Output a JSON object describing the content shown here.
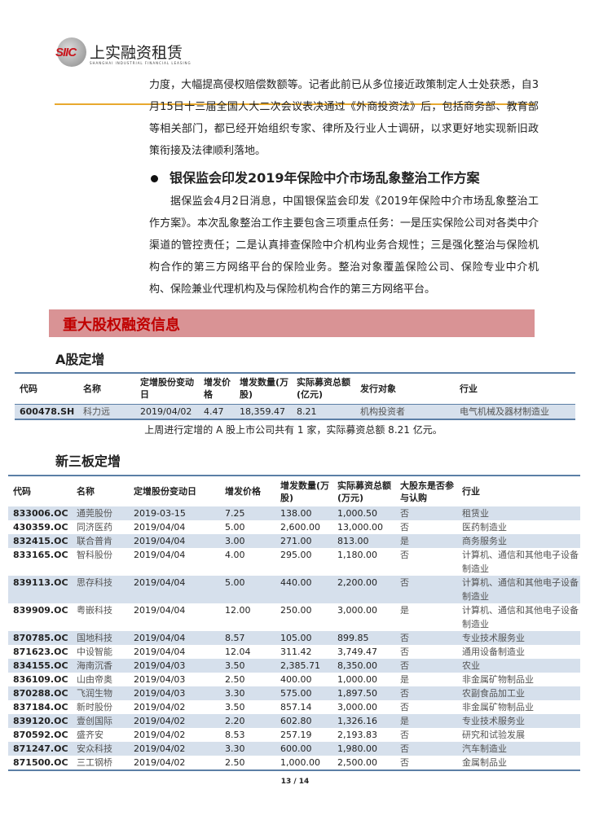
{
  "header": {
    "logo_mark": "SIIC",
    "company_cn": "上实融资租赁",
    "company_en": "SHANGHAI INDUSTRIAL FINANCIAL LEASING"
  },
  "para1": "力度，大幅提高侵权赔偿数额等。记者此前已从多位接近政策制定人士处获悉，自3月15日十三届全国人大二次会议表决通过《外商投资法》后，包括商务部、教育部等相关部门，都已经开始组织专家、律所及行业人士调研，以求更好地实现新旧政策衔接及法律顺利落地。",
  "heading2": "银保监会印发2019年保险中介市场乱象整治工作方案",
  "para2": "据保监会4月2日消息，中国银保监会印发《2019年保险中介市场乱象整治工作方案》。本次乱象整治工作主要包含三项重点任务：一是压实保险公司对各类中介渠道的管控责任；二是认真排查保险中介机构业务合规性；三是强化整治与保险机构合作的第三方网络平台的保险业务。整治对象覆盖保险公司、保险专业中介机构、保险兼业代理机构及与保险机构合作的第三方网络平台。",
  "banner": "重大股权融资信息",
  "a_share": {
    "title": "A股定增",
    "headers": [
      "代码",
      "名称",
      "定增股份变动日",
      "增发价格",
      "增发数量(万股)",
      "实际募资总额(亿元)",
      "发行对象",
      "行业"
    ],
    "rows": [
      [
        "600478.SH",
        "科力远",
        "2019/04/02",
        "4.47",
        "18,359.47",
        "8.21",
        "机构投资者",
        "电气机械及器材制造业"
      ]
    ],
    "note": "上周进行定增的 A 股上市公司共有 1 家，实际募资总额 8.21 亿元。"
  },
  "neeq": {
    "title": "新三板定增",
    "headers": [
      "代码",
      "名称",
      "定增股份变动日",
      "增发价格",
      "增发数量(万股)",
      "实际募资总额(万元)",
      "大股东是否参与认购",
      "行业"
    ],
    "rows": [
      [
        "833006.OC",
        "通莞股份",
        "2019-03-15",
        "7.25",
        "138.00",
        "1,000.50",
        "否",
        "租赁业"
      ],
      [
        "430359.OC",
        "同济医药",
        "2019/04/04",
        "5.00",
        "2,600.00",
        "13,000.00",
        "否",
        "医药制造业"
      ],
      [
        "832415.OC",
        "联合普肯",
        "2019/04/04",
        "3.00",
        "271.00",
        "813.00",
        "是",
        "商务服务业"
      ],
      [
        "833165.OC",
        "智科股份",
        "2019/04/04",
        "4.00",
        "295.00",
        "1,180.00",
        "否",
        "计算机、通信和其他电子设备制造业"
      ],
      [
        "839113.OC",
        "思存科技",
        "2019/04/04",
        "5.00",
        "440.00",
        "2,200.00",
        "否",
        "计算机、通信和其他电子设备制造业"
      ],
      [
        "839909.OC",
        "粤嵌科技",
        "2019/04/04",
        "12.00",
        "250.00",
        "3,000.00",
        "是",
        "计算机、通信和其他电子设备制造业"
      ],
      [
        "870785.OC",
        "国地科技",
        "2019/04/04",
        "8.57",
        "105.00",
        "899.85",
        "否",
        "专业技术服务业"
      ],
      [
        "871623.OC",
        "中设智能",
        "2019/04/04",
        "12.04",
        "311.42",
        "3,749.47",
        "否",
        "通用设备制造业"
      ],
      [
        "834155.OC",
        "海南沉香",
        "2019/04/03",
        "3.50",
        "2,385.71",
        "8,350.00",
        "否",
        "农业"
      ],
      [
        "836109.OC",
        "山由帝奥",
        "2019/04/03",
        "2.50",
        "400.00",
        "1,000.00",
        "是",
        "非金属矿物制品业"
      ],
      [
        "870288.OC",
        "飞润生物",
        "2019/04/03",
        "3.30",
        "575.00",
        "1,897.50",
        "否",
        "农副食品加工业"
      ],
      [
        "837184.OC",
        "新时股份",
        "2019/04/02",
        "3.50",
        "857.14",
        "3,000.00",
        "否",
        "非金属矿物制品业"
      ],
      [
        "839120.OC",
        "壹创国际",
        "2019/04/02",
        "2.20",
        "602.80",
        "1,326.16",
        "是",
        "专业技术服务业"
      ],
      [
        "870592.OC",
        "盛齐安",
        "2019/04/02",
        "8.53",
        "257.19",
        "2,193.83",
        "否",
        "研究和试验发展"
      ],
      [
        "871247.OC",
        "安众科技",
        "2019/04/02",
        "3.30",
        "600.00",
        "1,980.00",
        "否",
        "汽车制造业"
      ],
      [
        "871500.OC",
        "三工钢桥",
        "2019/04/02",
        "2.50",
        "1,000.00",
        "2,500.00",
        "否",
        "金属制品业"
      ]
    ]
  },
  "page_number": "13 / 14",
  "colors": {
    "accent_line": "#e8a92e",
    "banner_bg": "#d99395",
    "banner_text": "#c00000",
    "row_shade": "#d6e0ec",
    "table_rule": "#5b7fa6"
  }
}
